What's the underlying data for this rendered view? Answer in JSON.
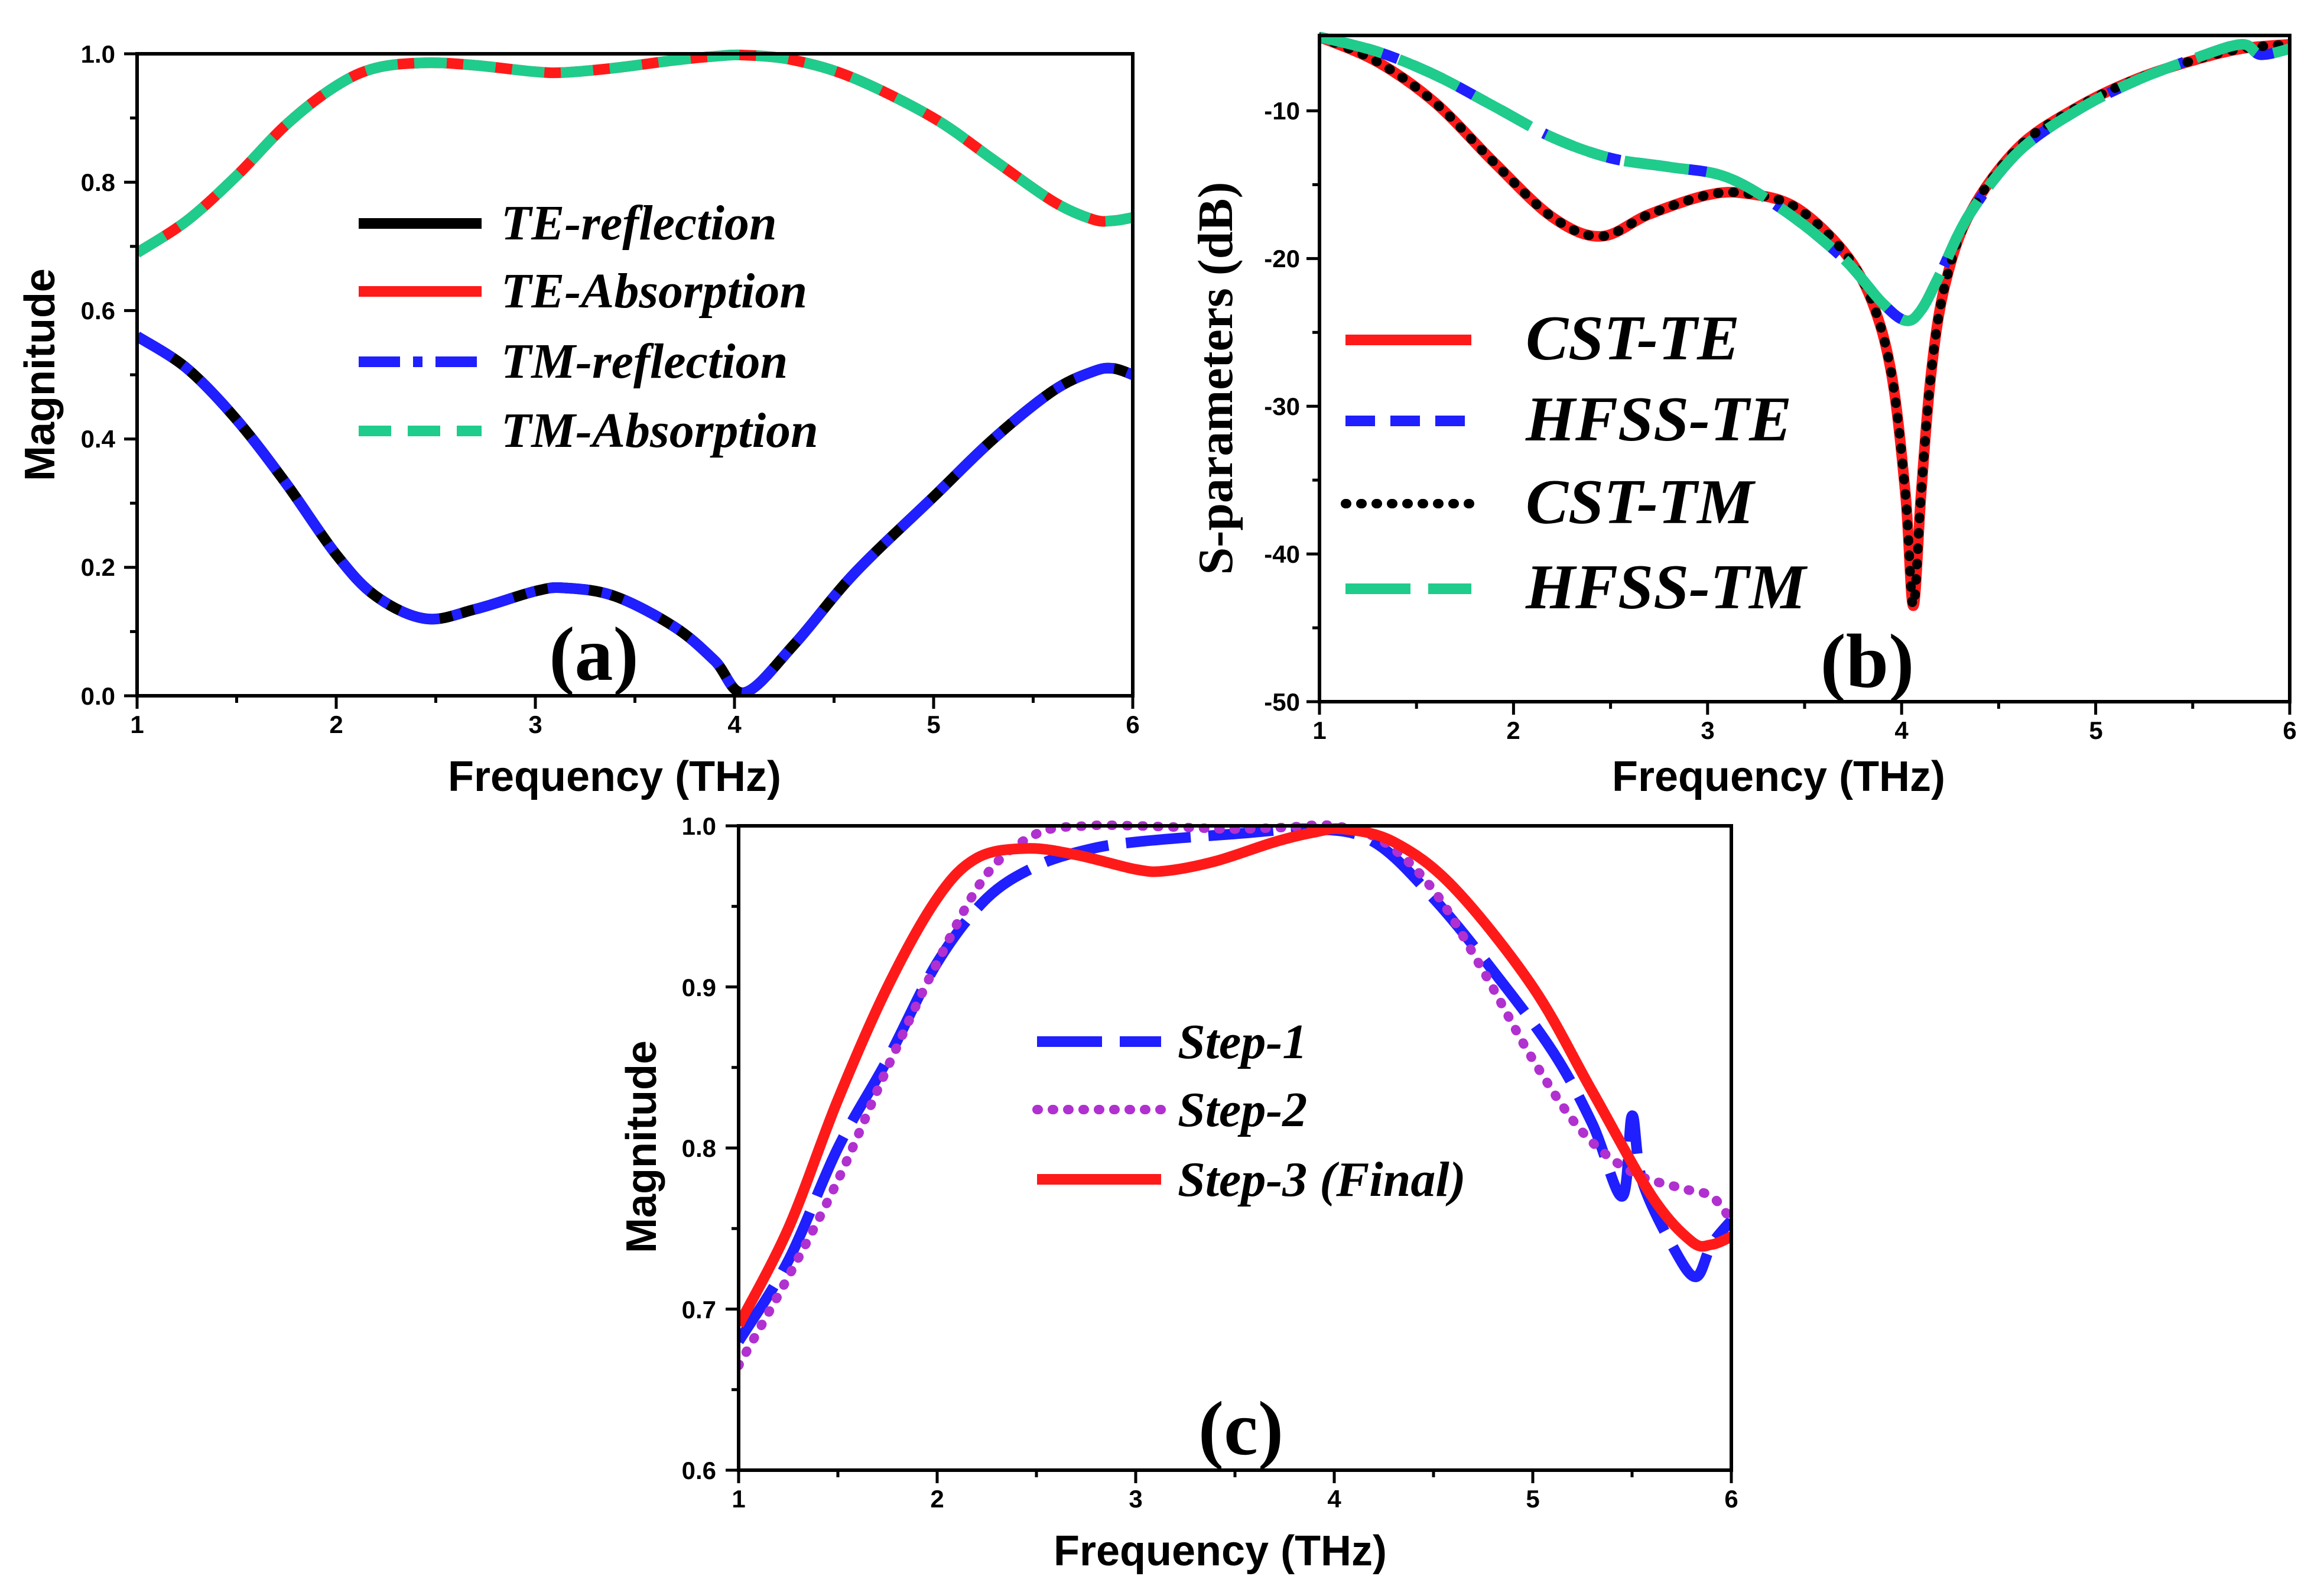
{
  "colors": {
    "black": "#000000",
    "red": "#ff1a1a",
    "blue": "#1f1fff",
    "green": "#1fcc8c",
    "purple": "#b030d0"
  },
  "chart_data": [
    {
      "id": "a",
      "type": "line",
      "panel_label": "(a)",
      "xlabel": "Frequency (THz)",
      "ylabel": "Magnitude",
      "xlim": [
        1,
        6
      ],
      "ylim": [
        0,
        1
      ],
      "xticks": [
        1,
        2,
        3,
        4,
        5,
        6
      ],
      "yticks": [
        0,
        0.2,
        0.4,
        0.6,
        0.8,
        1
      ],
      "ytick_labels": [
        "0.0",
        "0.2",
        "0.4",
        "0.6",
        "0.8",
        "1.0"
      ],
      "legend_position": "center",
      "series": [
        {
          "name": "TE-reflection",
          "color": "#000000",
          "style": "solid",
          "x": [
            1,
            1.25,
            1.5,
            1.75,
            2,
            2.2,
            2.45,
            2.7,
            3,
            3.15,
            3.4,
            3.7,
            3.9,
            4.05,
            4.3,
            4.6,
            5,
            5.3,
            5.6,
            5.8,
            5.9,
            6
          ],
          "y": [
            0.56,
            0.51,
            0.43,
            0.33,
            0.22,
            0.155,
            0.12,
            0.135,
            0.163,
            0.168,
            0.155,
            0.107,
            0.055,
            0.005,
            0.08,
            0.19,
            0.31,
            0.4,
            0.475,
            0.505,
            0.51,
            0.5
          ]
        },
        {
          "name": "TE-Absorption",
          "color": "#ff1a1a",
          "style": "solid",
          "x": [
            1,
            1.25,
            1.5,
            1.75,
            2,
            2.2,
            2.45,
            2.7,
            3,
            3.15,
            3.4,
            3.7,
            3.9,
            4.05,
            4.3,
            4.6,
            5,
            5.3,
            5.6,
            5.8,
            5.9,
            6
          ],
          "y": [
            0.69,
            0.74,
            0.81,
            0.89,
            0.95,
            0.978,
            0.986,
            0.982,
            0.972,
            0.971,
            0.978,
            0.99,
            0.996,
            0.998,
            0.99,
            0.962,
            0.9,
            0.835,
            0.77,
            0.742,
            0.74,
            0.745
          ]
        },
        {
          "name": "TM-reflection",
          "color": "#1f1fff",
          "style": "dashdot",
          "x": [
            1,
            1.25,
            1.5,
            1.75,
            2,
            2.2,
            2.45,
            2.7,
            3,
            3.15,
            3.4,
            3.7,
            3.9,
            4.05,
            4.3,
            4.6,
            5,
            5.3,
            5.6,
            5.8,
            5.9,
            6
          ],
          "y": [
            0.56,
            0.51,
            0.43,
            0.33,
            0.22,
            0.155,
            0.12,
            0.135,
            0.163,
            0.168,
            0.155,
            0.107,
            0.055,
            0.005,
            0.08,
            0.19,
            0.31,
            0.4,
            0.475,
            0.505,
            0.51,
            0.5
          ]
        },
        {
          "name": "TM-Absorption",
          "color": "#1fcc8c",
          "style": "dash",
          "x": [
            1,
            1.25,
            1.5,
            1.75,
            2,
            2.2,
            2.45,
            2.7,
            3,
            3.15,
            3.4,
            3.7,
            3.9,
            4.05,
            4.3,
            4.6,
            5,
            5.3,
            5.6,
            5.8,
            5.9,
            6
          ],
          "y": [
            0.69,
            0.74,
            0.81,
            0.89,
            0.95,
            0.978,
            0.986,
            0.982,
            0.972,
            0.971,
            0.978,
            0.99,
            0.996,
            0.998,
            0.99,
            0.962,
            0.9,
            0.835,
            0.77,
            0.742,
            0.74,
            0.745
          ]
        }
      ]
    },
    {
      "id": "b",
      "type": "line",
      "panel_label": "(b)",
      "xlabel": "Frequency (THz)",
      "ylabel": "S-parameters (dB)",
      "xlim": [
        1,
        6
      ],
      "ylim": [
        -50,
        -4.9
      ],
      "xticks": [
        1,
        2,
        3,
        4,
        5,
        6
      ],
      "yticks": [
        -50,
        -40,
        -30,
        -20,
        -10
      ],
      "ytick_labels": [
        "-50",
        "-40",
        "-30",
        "-20",
        "-10"
      ],
      "legend_position": "lower-left",
      "series": [
        {
          "name": "CST-TE",
          "color": "#ff1a1a",
          "style": "solid",
          "x": [
            1,
            1.3,
            1.6,
            1.9,
            2.2,
            2.45,
            2.7,
            3,
            3.2,
            3.45,
            3.7,
            3.85,
            3.95,
            4.02,
            4.06,
            4.1,
            4.15,
            4.22,
            4.35,
            4.6,
            4.9,
            5.2,
            5.5,
            5.75,
            6
          ],
          "y": [
            -5,
            -6.7,
            -9.5,
            -13.5,
            -17.2,
            -18.5,
            -17,
            -15.7,
            -15.6,
            -16.5,
            -19.5,
            -23,
            -28,
            -36,
            -43.5,
            -36,
            -28,
            -22,
            -17,
            -12.5,
            -9.8,
            -7.9,
            -6.6,
            -5.8,
            -5.5
          ]
        },
        {
          "name": "HFSS-TE",
          "color": "#1f1fff",
          "style": "dash",
          "x": [
            1,
            1.3,
            1.6,
            1.9,
            2.2,
            2.5,
            2.8,
            3.1,
            3.4,
            3.7,
            3.9,
            4.02,
            4.1,
            4.2,
            4.35,
            4.6,
            4.9,
            5.2,
            5.5,
            5.75,
            5.85,
            6
          ],
          "y": [
            -5,
            -6,
            -7.6,
            -9.7,
            -11.8,
            -13.2,
            -13.8,
            -14.5,
            -16.8,
            -20,
            -23,
            -24.2,
            -23.5,
            -21,
            -17,
            -12.8,
            -10,
            -8,
            -6.5,
            -5.5,
            -6.2,
            -5.8
          ]
        },
        {
          "name": "CST-TM",
          "color": "#000000",
          "style": "dot",
          "x": [
            1,
            1.3,
            1.6,
            1.9,
            2.2,
            2.45,
            2.7,
            3,
            3.2,
            3.45,
            3.7,
            3.85,
            3.95,
            4.02,
            4.06,
            4.1,
            4.15,
            4.22,
            4.35,
            4.6,
            4.9,
            5.2,
            5.5,
            5.75,
            6
          ],
          "y": [
            -5,
            -6.7,
            -9.5,
            -13.5,
            -17.2,
            -18.5,
            -17,
            -15.7,
            -15.6,
            -16.5,
            -19.5,
            -23,
            -28,
            -36,
            -43.5,
            -36,
            -28,
            -22,
            -17,
            -12.5,
            -9.8,
            -7.9,
            -6.6,
            -5.8,
            -5.5
          ]
        },
        {
          "name": "HFSS-TM",
          "color": "#1fcc8c",
          "style": "longdash",
          "x": [
            1,
            1.3,
            1.6,
            1.9,
            2.2,
            2.5,
            2.8,
            3.1,
            3.4,
            3.7,
            3.9,
            4.02,
            4.1,
            4.2,
            4.35,
            4.6,
            4.9,
            5.2,
            5.5,
            5.75,
            5.85,
            6
          ],
          "y": [
            -5,
            -6,
            -7.6,
            -9.7,
            -11.8,
            -13.2,
            -13.8,
            -14.5,
            -16.8,
            -20,
            -23,
            -24.2,
            -23.5,
            -21,
            -17,
            -12.8,
            -10,
            -8,
            -6.5,
            -5.5,
            -6.2,
            -5.8
          ]
        }
      ]
    },
    {
      "id": "c",
      "type": "line",
      "panel_label": "(c)",
      "xlabel": "Frequency (THz)",
      "ylabel": "Magnitude",
      "xlim": [
        1,
        6
      ],
      "ylim": [
        0.6,
        1
      ],
      "xticks": [
        1,
        2,
        3,
        4,
        5,
        6
      ],
      "yticks": [
        0.6,
        0.7,
        0.8,
        0.9,
        1
      ],
      "ytick_labels": [
        "0.6",
        "0.7",
        "0.8",
        "0.9",
        "1.0"
      ],
      "legend_position": "center",
      "series": [
        {
          "name": "Step-1",
          "color": "#1f1fff",
          "style": "longdash",
          "x": [
            1,
            1.25,
            1.5,
            1.75,
            2,
            2.25,
            2.5,
            2.75,
            3,
            3.5,
            3.9,
            4.2,
            4.5,
            4.8,
            5.1,
            5.3,
            5.45,
            5.5,
            5.55,
            5.7,
            5.82,
            5.9,
            6
          ],
          "y": [
            0.68,
            0.73,
            0.8,
            0.855,
            0.915,
            0.955,
            0.975,
            0.985,
            0.99,
            0.995,
            0.998,
            0.99,
            0.955,
            0.91,
            0.86,
            0.815,
            0.77,
            0.82,
            0.78,
            0.74,
            0.72,
            0.74,
            0.755
          ]
        },
        {
          "name": "Step-2",
          "color": "#b030d0",
          "style": "dot",
          "x": [
            1,
            1.25,
            1.5,
            1.75,
            2,
            2.25,
            2.5,
            2.75,
            3,
            3.25,
            3.5,
            3.75,
            4,
            4.25,
            4.5,
            4.75,
            5,
            5.25,
            5.5,
            5.75,
            5.9,
            6
          ],
          "y": [
            0.665,
            0.72,
            0.78,
            0.85,
            0.915,
            0.97,
            0.995,
            1,
            1,
            0.999,
            0.998,
            0.999,
            1,
            0.99,
            0.96,
            0.91,
            0.855,
            0.81,
            0.785,
            0.775,
            0.77,
            0.755
          ]
        },
        {
          "name": "Step-3 (Final)",
          "color": "#ff1a1a",
          "style": "solid",
          "x": [
            1,
            1.25,
            1.5,
            1.75,
            2,
            2.2,
            2.45,
            2.7,
            3,
            3.15,
            3.4,
            3.7,
            3.9,
            4.05,
            4.3,
            4.6,
            5,
            5.3,
            5.6,
            5.8,
            5.9,
            6
          ],
          "y": [
            0.69,
            0.75,
            0.83,
            0.9,
            0.955,
            0.98,
            0.986,
            0.982,
            0.973,
            0.972,
            0.978,
            0.99,
            0.996,
            0.998,
            0.99,
            0.962,
            0.9,
            0.835,
            0.77,
            0.742,
            0.74,
            0.745
          ]
        }
      ]
    }
  ]
}
